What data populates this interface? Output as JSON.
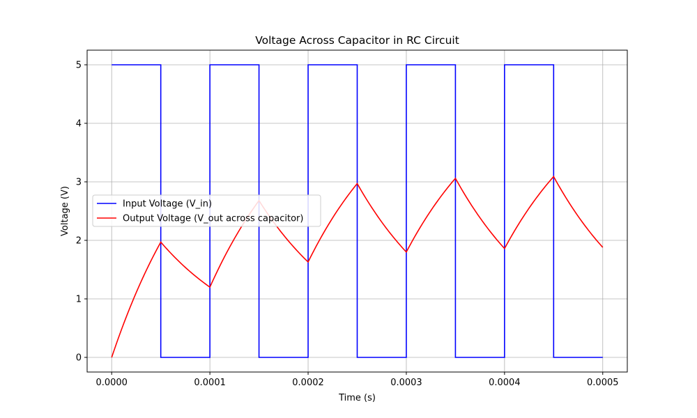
{
  "chart_data": {
    "type": "line",
    "title": "Voltage Across Capacitor in RC Circuit",
    "xlabel": "Time (s)",
    "ylabel": "Voltage (V)",
    "xlim": [
      -2.5e-05,
      0.000525
    ],
    "ylim": [
      -0.25,
      5.25
    ],
    "x_ticks": [
      0,
      0.0001,
      0.0002,
      0.0003,
      0.0004,
      0.0005
    ],
    "x_tick_labels": [
      "0.0000",
      "0.0001",
      "0.0002",
      "0.0003",
      "0.0004",
      "0.0005"
    ],
    "y_ticks": [
      0,
      1,
      2,
      3,
      4,
      5
    ],
    "y_tick_labels": [
      "0",
      "1",
      "2",
      "3",
      "4",
      "5"
    ],
    "grid": true,
    "legend_position": "center-left",
    "series": [
      {
        "name": "Input Voltage (V_in)",
        "color": "#0000ff",
        "x": [
          0,
          5e-05,
          5e-05,
          0.0001,
          0.0001,
          0.00015,
          0.00015,
          0.0002,
          0.0002,
          0.00025,
          0.00025,
          0.0003,
          0.0003,
          0.00035,
          0.00035,
          0.0004,
          0.0004,
          0.00045,
          0.00045,
          0.0005
        ],
        "y": [
          5,
          5,
          0,
          0,
          5,
          5,
          0,
          0,
          5,
          5,
          0,
          0,
          5,
          5,
          0,
          0,
          5,
          5,
          0,
          0
        ]
      },
      {
        "name": "Output Voltage (V_out across capacitor)",
        "color": "#ff0000",
        "x": [
          0,
          5e-05,
          0.0001,
          0.00015,
          0.0002,
          0.00025,
          0.0003,
          0.00035,
          0.0004,
          0.00045,
          0.0005
        ],
        "y": [
          0,
          1.97,
          1.2,
          2.68,
          1.63,
          2.97,
          1.8,
          3.06,
          1.86,
          3.09,
          1.88
        ]
      }
    ]
  }
}
